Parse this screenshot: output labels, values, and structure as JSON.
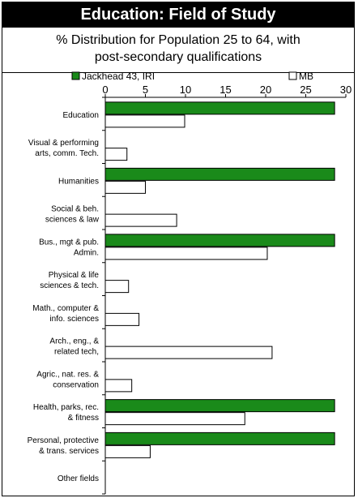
{
  "header": {
    "title": "Education: Field of Study",
    "subtitle_line1": "% Distribution for Population 25 to 64, with",
    "subtitle_line2": "post-secondary qualifications"
  },
  "chart_data": {
    "type": "bar",
    "orientation": "horizontal",
    "title": "Education: Field of Study",
    "subtitle": "% Distribution for Population 25 to 64, with post-secondary qualifications",
    "xlim": [
      0,
      30
    ],
    "x_ticks": [
      0,
      5,
      10,
      15,
      20,
      25,
      30
    ],
    "x_tick_position": "top",
    "legend_position": "top",
    "categories": [
      [
        "Education"
      ],
      [
        "Visual & performing",
        "arts, comm. Tech."
      ],
      [
        "Humanities"
      ],
      [
        "Social & beh.",
        "sciences & law"
      ],
      [
        "Bus., mgt & pub.",
        "Admin."
      ],
      [
        "Physical & life",
        "sciences & tech."
      ],
      [
        "Math., computer &",
        "info. sciences"
      ],
      [
        "Arch., eng., &",
        "related tech,"
      ],
      [
        "Agric., nat. res. &",
        "conservation"
      ],
      [
        "Health, parks, rec.",
        "& fitness"
      ],
      [
        "Personal, protective",
        "& trans. services"
      ],
      [
        "Other fields"
      ]
    ],
    "series": [
      {
        "name": "Jackhead 43, IRI",
        "color": "#1a8a1a",
        "values": [
          28.6,
          0,
          28.6,
          0,
          28.6,
          0,
          0,
          0,
          0,
          28.6,
          28.6,
          0
        ]
      },
      {
        "name": "MB",
        "color": "#ffffff",
        "values": [
          9.9,
          2.7,
          5.0,
          8.9,
          20.2,
          2.9,
          4.2,
          20.8,
          3.3,
          17.4,
          5.6,
          0
        ]
      }
    ]
  }
}
